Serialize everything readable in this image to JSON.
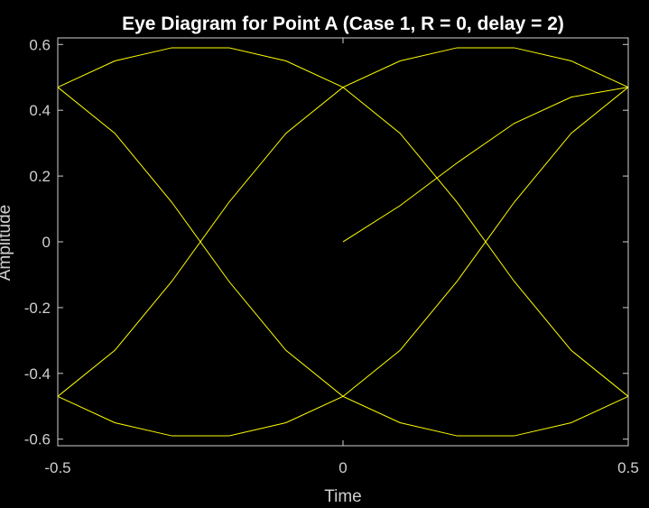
{
  "chart_data": {
    "type": "line",
    "title": "Eye Diagram for Point A (Case 1, R = 0, delay = 2)",
    "xlabel": "Time",
    "ylabel": "Amplitude",
    "xlim": [
      -0.5,
      0.5
    ],
    "ylim": [
      -0.62,
      0.62
    ],
    "xticks": [
      -0.5,
      0,
      0.5
    ],
    "xtick_labels": [
      "-0.5",
      "0",
      "0.5"
    ],
    "yticks": [
      -0.6,
      -0.4,
      -0.2,
      0,
      0.2,
      0.4,
      0.6
    ],
    "ytick_labels": [
      "-0.6",
      "-0.4",
      "-0.2",
      "0",
      "0.2",
      "0.4",
      "0.6"
    ],
    "grid": false,
    "background": "#000000",
    "axes_color": "#cfcfcf",
    "line_color": "#ffff00",
    "series": [
      {
        "x": [
          0,
          0.1,
          0.2,
          0.3,
          0.4,
          0.5
        ],
        "y": [
          0,
          0.11,
          0.24,
          0.36,
          0.44,
          0.47
        ]
      },
      {
        "x": [
          -0.5,
          -0.4,
          -0.3,
          -0.2,
          -0.1,
          0,
          0.1,
          0.2,
          0.3,
          0.4,
          0.5
        ],
        "y": [
          0.47,
          0.55,
          0.59,
          0.59,
          0.55,
          0.47,
          0.33,
          0.12,
          -0.12,
          -0.33,
          -0.47
        ]
      },
      {
        "x": [
          -0.5,
          -0.4,
          -0.3,
          -0.2,
          -0.1,
          0,
          0.1,
          0.2,
          0.3,
          0.4,
          0.5
        ],
        "y": [
          0.47,
          0.33,
          0.12,
          -0.12,
          -0.33,
          -0.47,
          -0.55,
          -0.59,
          -0.59,
          -0.55,
          -0.47
        ]
      },
      {
        "x": [
          -0.5,
          -0.4,
          -0.3,
          -0.2,
          -0.1,
          0,
          0.1,
          0.2,
          0.3,
          0.4,
          0.5
        ],
        "y": [
          -0.47,
          -0.33,
          -0.12,
          0.12,
          0.33,
          0.47,
          0.55,
          0.59,
          0.59,
          0.55,
          0.47
        ]
      },
      {
        "x": [
          -0.5,
          -0.4,
          -0.3,
          -0.2,
          -0.1,
          0,
          0.1,
          0.2,
          0.3,
          0.4,
          0.5
        ],
        "y": [
          -0.47,
          -0.55,
          -0.59,
          -0.59,
          -0.55,
          -0.47,
          -0.33,
          -0.12,
          0.12,
          0.33,
          0.47
        ]
      }
    ]
  }
}
